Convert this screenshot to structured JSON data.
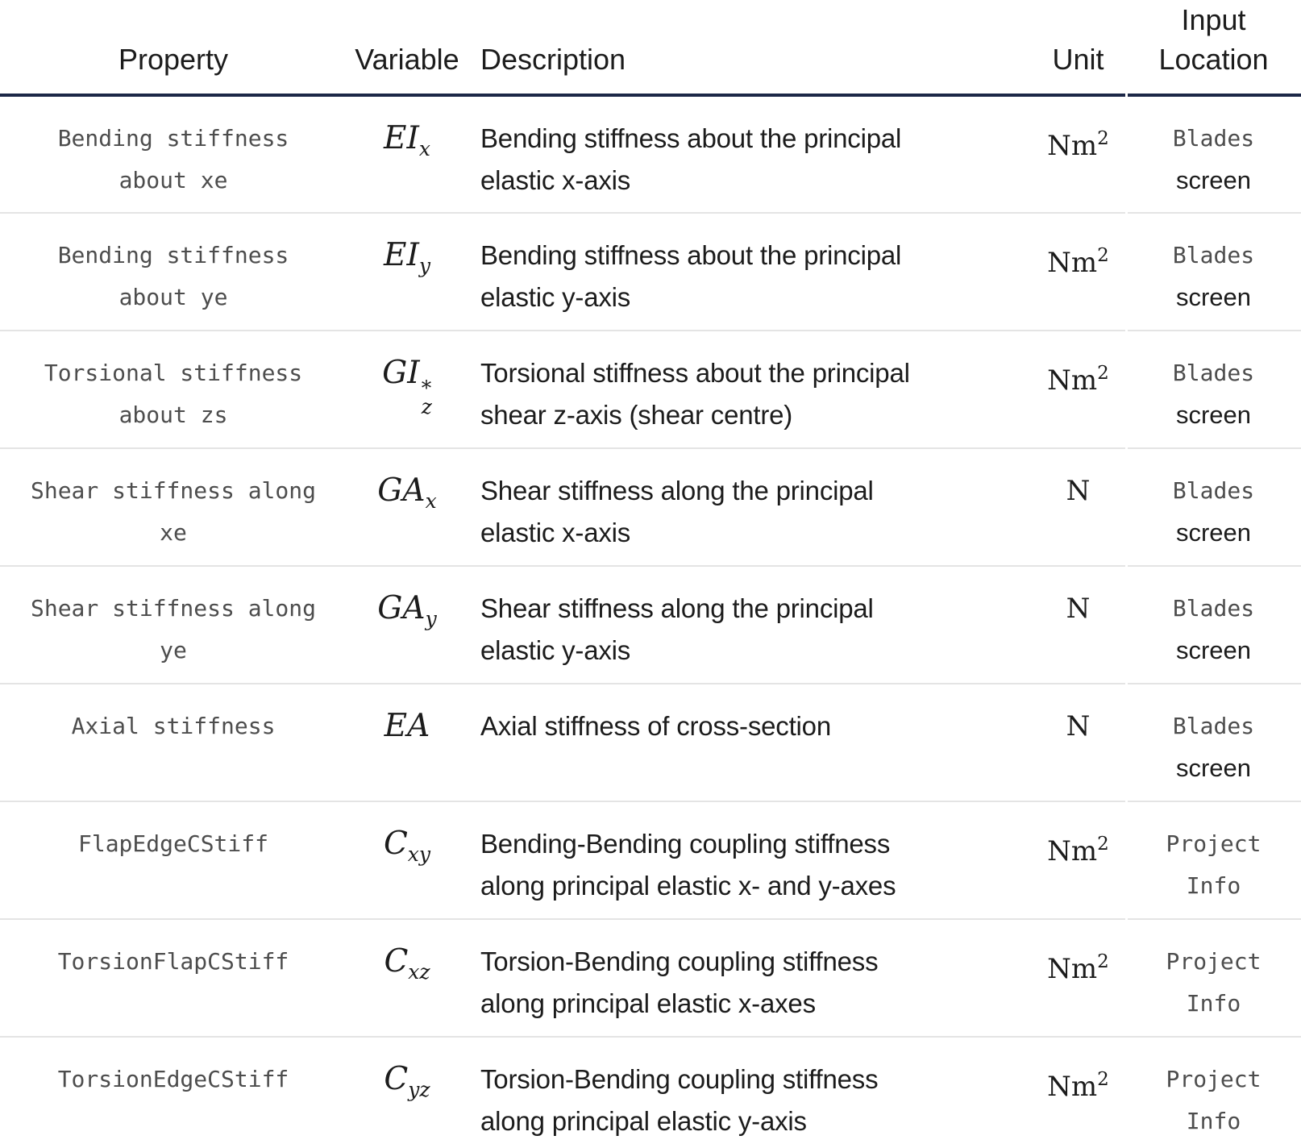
{
  "header": {
    "property": "Property",
    "variable": "Variable",
    "description": "Description",
    "unit": "Unit",
    "input_location_lines": [
      "Input",
      "Location"
    ]
  },
  "rows": [
    {
      "property_lines": [
        "Bending stiffness",
        "about xe"
      ],
      "variable": {
        "base": "EI",
        "sup": "",
        "sub": "x"
      },
      "description_lines": [
        "Bending stiffness about the principal",
        "elastic x-axis"
      ],
      "unit": {
        "base": "Nm",
        "sup": "2"
      },
      "location_lines": [
        {
          "text": "Blades",
          "style": "code"
        },
        {
          "text": "screen",
          "style": "plain"
        }
      ]
    },
    {
      "property_lines": [
        "Bending stiffness",
        "about ye"
      ],
      "variable": {
        "base": "EI",
        "sup": "",
        "sub": "y"
      },
      "description_lines": [
        "Bending stiffness about the principal",
        "elastic y-axis"
      ],
      "unit": {
        "base": "Nm",
        "sup": "2"
      },
      "location_lines": [
        {
          "text": "Blades",
          "style": "code"
        },
        {
          "text": "screen",
          "style": "plain"
        }
      ]
    },
    {
      "property_lines": [
        "Torsional stiffness",
        "about zs"
      ],
      "variable": {
        "base": "GI",
        "sup": "*",
        "sub": "z"
      },
      "description_lines": [
        "Torsional stiffness about the principal",
        "shear z-axis (shear centre)"
      ],
      "unit": {
        "base": "Nm",
        "sup": "2"
      },
      "location_lines": [
        {
          "text": "Blades",
          "style": "code"
        },
        {
          "text": "screen",
          "style": "plain"
        }
      ]
    },
    {
      "property_lines": [
        "Shear stiffness along",
        "xe"
      ],
      "variable": {
        "base": "GA",
        "sup": "",
        "sub": "x"
      },
      "description_lines": [
        "Shear stiffness along the principal",
        "elastic x-axis"
      ],
      "unit": {
        "base": "N",
        "sup": ""
      },
      "location_lines": [
        {
          "text": "Blades",
          "style": "code"
        },
        {
          "text": "screen",
          "style": "plain"
        }
      ]
    },
    {
      "property_lines": [
        "Shear stiffness along",
        "ye"
      ],
      "variable": {
        "base": "GA",
        "sup": "",
        "sub": "y"
      },
      "description_lines": [
        "Shear stiffness along the principal",
        "elastic y-axis"
      ],
      "unit": {
        "base": "N",
        "sup": ""
      },
      "location_lines": [
        {
          "text": "Blades",
          "style": "code"
        },
        {
          "text": "screen",
          "style": "plain"
        }
      ]
    },
    {
      "property_lines": [
        "Axial stiffness"
      ],
      "variable": {
        "base": "EA",
        "sup": "",
        "sub": ""
      },
      "description_lines": [
        "Axial stiffness of cross-section"
      ],
      "unit": {
        "base": "N",
        "sup": ""
      },
      "location_lines": [
        {
          "text": "Blades",
          "style": "code"
        },
        {
          "text": "screen",
          "style": "plain"
        }
      ]
    },
    {
      "property_lines": [
        "FlapEdgeCStiff"
      ],
      "variable": {
        "base": "C",
        "sup": "",
        "sub": "xy"
      },
      "description_lines": [
        "Bending-Bending coupling stiffness",
        "along principal elastic x- and y-axes"
      ],
      "unit": {
        "base": "Nm",
        "sup": "2"
      },
      "location_lines": [
        {
          "text": "Project",
          "style": "code"
        },
        {
          "text": "Info",
          "style": "code"
        }
      ]
    },
    {
      "property_lines": [
        "TorsionFlapCStiff"
      ],
      "variable": {
        "base": "C",
        "sup": "",
        "sub": "xz"
      },
      "description_lines": [
        "Torsion-Bending coupling stiffness",
        "along principal elastic x-axes"
      ],
      "unit": {
        "base": "Nm",
        "sup": "2"
      },
      "location_lines": [
        {
          "text": "Project",
          "style": "code"
        },
        {
          "text": "Info",
          "style": "code"
        }
      ]
    },
    {
      "property_lines": [
        "TorsionEdgeCStiff"
      ],
      "variable": {
        "base": "C",
        "sup": "",
        "sub": "yz"
      },
      "description_lines": [
        "Torsion-Bending coupling stiffness",
        "along principal elastic y-axis"
      ],
      "unit": {
        "base": "Nm",
        "sup": "2"
      },
      "location_lines": [
        {
          "text": "Project",
          "style": "code"
        },
        {
          "text": "Info",
          "style": "code"
        }
      ]
    }
  ],
  "colors": {
    "header_rule": "#1c2747",
    "row_rule": "#e4e4e4",
    "text": "#1c1c1c",
    "code_text": "#4d4d4d"
  }
}
